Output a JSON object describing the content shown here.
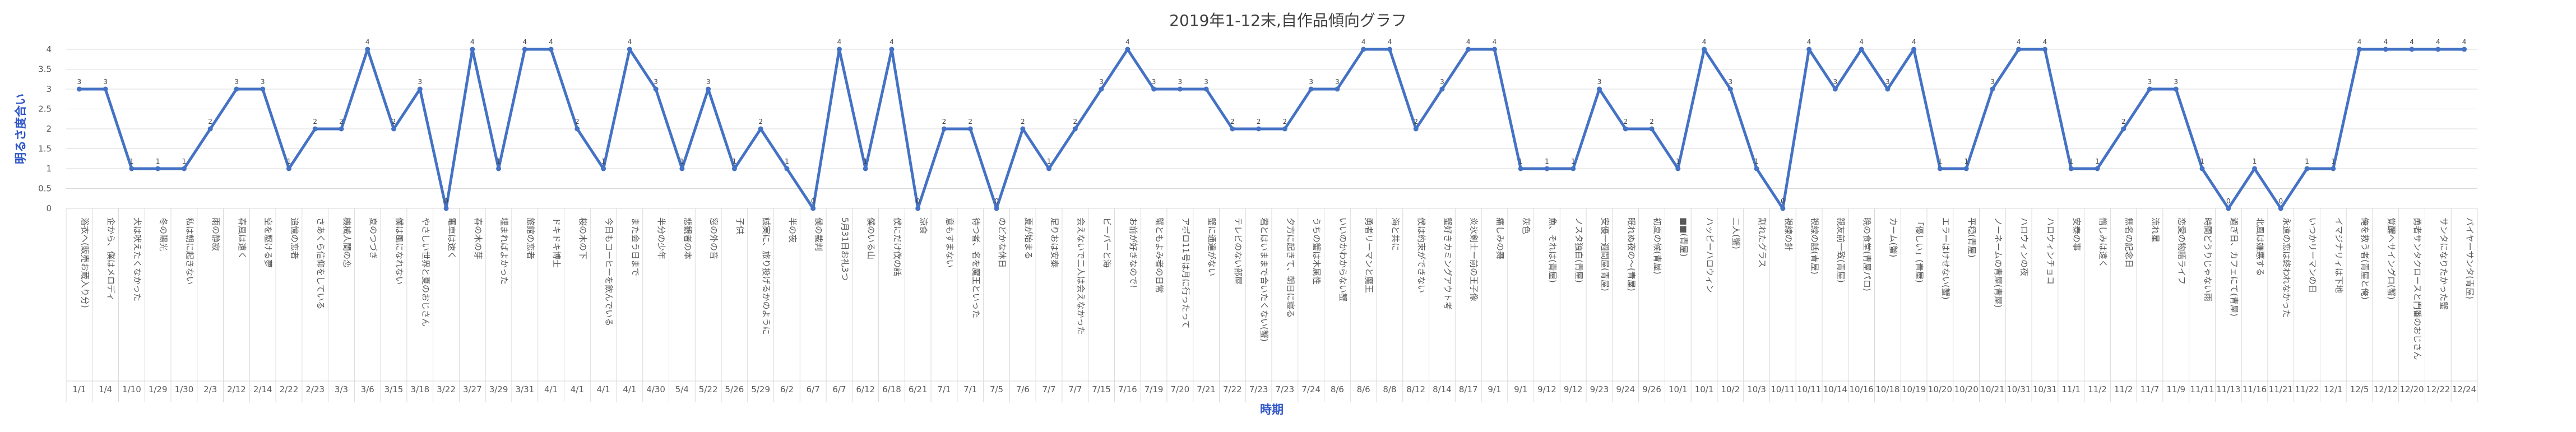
{
  "chart_data": {
    "type": "line",
    "title": "2019年1-12末,自作品傾向グラフ",
    "xlabel": "時期",
    "ylabel": "明るさ度合い",
    "ylim": [
      0,
      4
    ],
    "yticks": [
      0,
      0.5,
      1,
      1.5,
      2,
      2.5,
      3,
      3.5,
      4
    ],
    "grid": true,
    "line_color": "#4472c4",
    "points": [
      {
        "date": "1/1",
        "title": "浴衣へ(販売お蔵入り分)",
        "value": 3
      },
      {
        "date": "1/4",
        "title": "企から、僕はメロディ",
        "value": 3
      },
      {
        "date": "1/10",
        "title": "犬は吠えたくなかった",
        "value": 1
      },
      {
        "date": "1/29",
        "title": "冬の陽光",
        "value": 1
      },
      {
        "date": "1/30",
        "title": "私は朝に起きない",
        "value": 1
      },
      {
        "date": "2/3",
        "title": "雨の静寂",
        "value": 2
      },
      {
        "date": "2/12",
        "title": "春風は遠く",
        "value": 3
      },
      {
        "date": "2/14",
        "title": "空を駆ける夢",
        "value": 3
      },
      {
        "date": "2/22",
        "title": "追憶の恋者",
        "value": 1
      },
      {
        "date": "2/23",
        "title": "さあくら信仰をしている",
        "value": 2
      },
      {
        "date": "3/3",
        "title": "機械人間の恋",
        "value": 2
      },
      {
        "date": "3/6",
        "title": "夏のつづき",
        "value": 4
      },
      {
        "date": "3/15",
        "title": "僕は風になれない",
        "value": 2
      },
      {
        "date": "3/18",
        "title": "やさしい世界と夏のおじさん",
        "value": 3
      },
      {
        "date": "3/22",
        "title": "電車は速く",
        "value": 0
      },
      {
        "date": "3/27",
        "title": "春の木の芽",
        "value": 4
      },
      {
        "date": "3/29",
        "title": "埋まればよかった",
        "value": 1
      },
      {
        "date": "3/31",
        "title": "旅館の恋者",
        "value": 4
      },
      {
        "date": "4/1",
        "title": "ドキドキ博士",
        "value": 4
      },
      {
        "date": "4/1",
        "title": "桜の木の下",
        "value": 2
      },
      {
        "date": "4/1",
        "title": "今日もコーヒーを飲んでいる",
        "value": 1
      },
      {
        "date": "4/1",
        "title": "また会う日まで",
        "value": 4
      },
      {
        "date": "4/30",
        "title": "半分の少年",
        "value": 3
      },
      {
        "date": "5/4",
        "title": "悲観者の本",
        "value": 1
      },
      {
        "date": "5/22",
        "title": "窓の外の音",
        "value": 3
      },
      {
        "date": "5/26",
        "title": "子供",
        "value": 1
      },
      {
        "date": "5/29",
        "title": "誠実に、旅り投げるかのように",
        "value": 2
      },
      {
        "date": "6/2",
        "title": "半の夜",
        "value": 1
      },
      {
        "date": "6/7",
        "title": "僕の裁判",
        "value": 0
      },
      {
        "date": "6/7",
        "title": "5月31日お礼3つ",
        "value": 4
      },
      {
        "date": "6/12",
        "title": "僕のいる山",
        "value": 1
      },
      {
        "date": "6/18",
        "title": "僕にだけ僕の話",
        "value": 4
      },
      {
        "date": "6/21",
        "title": "涼食",
        "value": 0
      },
      {
        "date": "7/1",
        "title": "意もすまない",
        "value": 2
      },
      {
        "date": "7/1",
        "title": "待つ者、名を魔王といった",
        "value": 2
      },
      {
        "date": "7/5",
        "title": "のどかな休日",
        "value": 0
      },
      {
        "date": "7/6",
        "title": "夏が始まる",
        "value": 2
      },
      {
        "date": "7/7",
        "title": "足りおは安泰",
        "value": 1
      },
      {
        "date": "7/7",
        "title": "会えないで二人は会えなかった",
        "value": 2
      },
      {
        "date": "7/15",
        "title": "ビーバーと海",
        "value": 3
      },
      {
        "date": "7/16",
        "title": "お前が好きなので!",
        "value": 4
      },
      {
        "date": "7/19",
        "title": "蟹ともよみ者の日常",
        "value": 3
      },
      {
        "date": "7/20",
        "title": "アポロ11号は月に行ったって",
        "value": 3
      },
      {
        "date": "7/21",
        "title": "蟹に通達がない",
        "value": 3
      },
      {
        "date": "7/22",
        "title": "テレビのない部屋",
        "value": 2
      },
      {
        "date": "7/23",
        "title": "君とはいままで合いたくない(蟹)",
        "value": 2
      },
      {
        "date": "7/23",
        "title": "夕方に起きて、朝日に寝る",
        "value": 2
      },
      {
        "date": "7/24",
        "title": "うちの蟹は木属性",
        "value": 3
      },
      {
        "date": "8/6",
        "title": "いいのかわからない蟹",
        "value": 3
      },
      {
        "date": "8/6",
        "title": "勇者リーマンと魔王",
        "value": 4
      },
      {
        "date": "8/8",
        "title": "海と共に",
        "value": 4
      },
      {
        "date": "8/12",
        "title": "僕は約束ができない",
        "value": 2
      },
      {
        "date": "8/14",
        "title": "蟹好きカミングアウト考",
        "value": 3
      },
      {
        "date": "8/17",
        "title": "炎氷剣士ー前の王子像",
        "value": 4
      },
      {
        "date": "9/1",
        "title": "痛しみの舞",
        "value": 4
      },
      {
        "date": "9/1",
        "title": "灰色",
        "value": 1
      },
      {
        "date": "9/12",
        "title": "魚、それは(青屋)",
        "value": 1
      },
      {
        "date": "9/12",
        "title": "ノスタ独白(青屋)",
        "value": 1
      },
      {
        "date": "9/23",
        "title": "安優一週間屋(青屋)",
        "value": 3
      },
      {
        "date": "9/24",
        "title": "眠れぬ夜の〜(青屋)",
        "value": 2
      },
      {
        "date": "9/26",
        "title": "初夏の候(青屋)",
        "value": 2
      },
      {
        "date": "10/1",
        "title": "■■(青屋)",
        "value": 1
      },
      {
        "date": "10/1",
        "title": "ハッピーハロウィン",
        "value": 4
      },
      {
        "date": "10/2",
        "title": "二人(蟹)",
        "value": 3
      },
      {
        "date": "10/3",
        "title": "割れたグラス",
        "value": 1
      },
      {
        "date": "10/11",
        "title": "視線の針",
        "value": 0
      },
      {
        "date": "10/11",
        "title": "視線の話(青屋)",
        "value": 4
      },
      {
        "date": "10/14",
        "title": "親友前一致(青屋)",
        "value": 3
      },
      {
        "date": "10/16",
        "title": "晩の食堂(青屋パロ)",
        "value": 4
      },
      {
        "date": "10/18",
        "title": "カーム(蟹)",
        "value": 3
      },
      {
        "date": "10/19",
        "title": "「優しい」(青屋)",
        "value": 4
      },
      {
        "date": "10/20",
        "title": "エラーはけせない(蟹)",
        "value": 1
      },
      {
        "date": "10/20",
        "title": "平穏(青屋)",
        "value": 1
      },
      {
        "date": "10/21",
        "title": "ノーネームの青屋(青屋)",
        "value": 3
      },
      {
        "date": "10/31",
        "title": "ハロウィンの夜",
        "value": 4
      },
      {
        "date": "10/31",
        "title": "ハロウィンチョコ",
        "value": 4
      },
      {
        "date": "11/1",
        "title": "安泰の事",
        "value": 1
      },
      {
        "date": "11/2",
        "title": "憎しみは遠く",
        "value": 1
      },
      {
        "date": "11/2",
        "title": "無名の記念日",
        "value": 2
      },
      {
        "date": "11/7",
        "title": "流れ星",
        "value": 3
      },
      {
        "date": "11/9",
        "title": "恋愛の物語ライフ",
        "value": 3
      },
      {
        "date": "11/11",
        "title": "時間どうりじゃない雨",
        "value": 1
      },
      {
        "date": "11/13",
        "title": "過ぎ日、カフェにて(青屋)",
        "value": 0
      },
      {
        "date": "11/16",
        "title": "北風は嫌悪する",
        "value": 1
      },
      {
        "date": "11/21",
        "title": "永遠の恋は終われなかった",
        "value": 0
      },
      {
        "date": "11/22",
        "title": "いつかリーマンの日",
        "value": 1
      },
      {
        "date": "12/1",
        "title": "イマジナリィは下地",
        "value": 1
      },
      {
        "date": "12/5",
        "title": "俺を救う者(青屋と俺)",
        "value": 4
      },
      {
        "date": "12/12",
        "title": "覚醒ヘサイングロ(蟹)",
        "value": 4
      },
      {
        "date": "12/20",
        "title": "勇者サンタクロースと門番のおじさん",
        "value": 4
      },
      {
        "date": "12/22",
        "title": "サンタになりたかった蟹",
        "value": 4
      },
      {
        "date": "12/24",
        "title": "バイヤーサンタ(青屋)",
        "value": 4
      }
    ]
  }
}
